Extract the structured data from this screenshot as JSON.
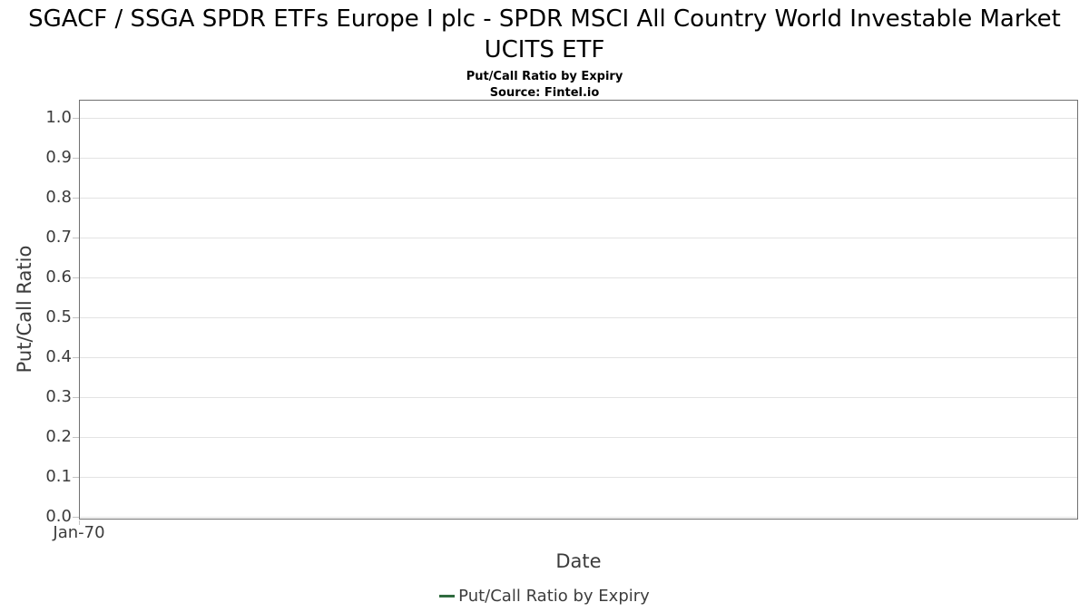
{
  "header": {
    "title": "SGACF / SSGA SPDR ETFs Europe I plc - SPDR MSCI All Country World Investable Market UCITS ETF",
    "subtitle": "Put/Call Ratio by Expiry",
    "source": "Source: Fintel.io"
  },
  "chart_data": {
    "type": "line",
    "title": "Put/Call Ratio by Expiry",
    "xlabel": "Date",
    "ylabel": "Put/Call Ratio",
    "x_tick_labels": [
      "Jan-70"
    ],
    "y_tick_labels": [
      "0.0",
      "0.1",
      "0.2",
      "0.3",
      "0.4",
      "0.5",
      "0.6",
      "0.7",
      "0.8",
      "0.9",
      "1.0"
    ],
    "ylim": [
      0.0,
      1.05
    ],
    "grid": true,
    "legend_position": "bottom-center",
    "series": [
      {
        "name": "Put/Call Ratio by Expiry",
        "color": "#2f6b3f",
        "x": [],
        "values": []
      }
    ]
  },
  "legend": {
    "items": [
      {
        "label": "Put/Call Ratio by Expiry",
        "color": "#2f6b3f"
      }
    ]
  },
  "colors": {
    "background": "#ffffff",
    "title_text": "#000000",
    "plot_border": "#707070",
    "gridline": "#e3e3e3",
    "tick_mark": "#c4c4c4",
    "tick_label": "#3c3c3c",
    "axis_title": "#3c3c3c",
    "legend_text": "#3d3d3d",
    "series_green": "#2f6b3f"
  }
}
